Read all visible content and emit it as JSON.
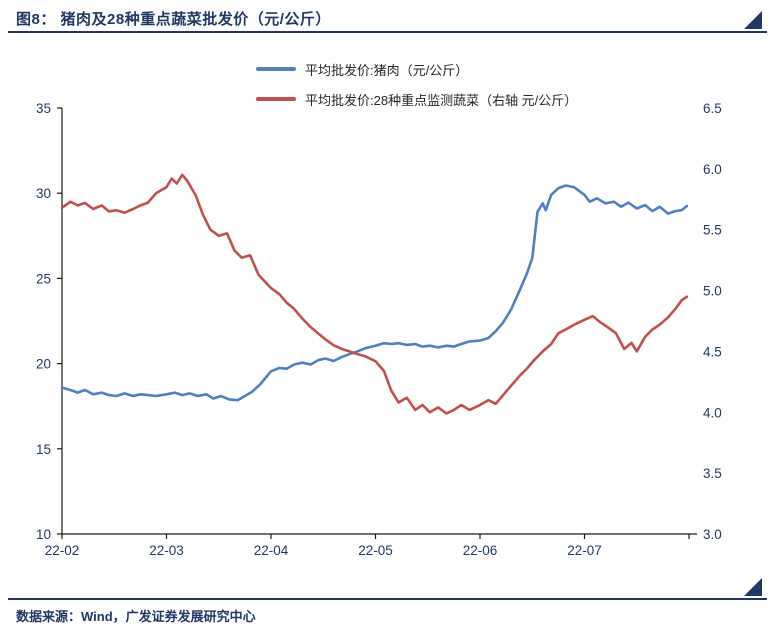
{
  "header": {
    "title": "图8：  猪肉及28种重点蔬菜批发价（元/公斤）"
  },
  "legend": [
    {
      "label": "平均批发价:猪肉（元/公斤）"
    },
    {
      "label": "平均批发价:28种重点监测蔬菜（右轴 元/公斤）"
    }
  ],
  "footer": {
    "source": "数据来源：Wind，广发证券发展研究中心"
  },
  "colors": {
    "navy": "#1f3864",
    "pork_blue": "#4f81bd",
    "veg_red": "#c0504d",
    "axis_text": "#1f3864",
    "axis_line": "#1a1a1a"
  },
  "chart_data": {
    "type": "line",
    "title": "猪肉及28种重点蔬菜批发价（元/公斤）",
    "x_unit": "months since 2022-02-01",
    "x_range": [
      0,
      6.05
    ],
    "x_ticks": [
      "22-02",
      "22-03",
      "22-04",
      "22-05",
      "22-06",
      "22-07"
    ],
    "left_axis": {
      "ticks": [
        10,
        15,
        20,
        25,
        30,
        35
      ],
      "range": [
        10,
        35
      ]
    },
    "right_axis": {
      "ticks": [
        3.0,
        3.5,
        4.0,
        4.5,
        5.0,
        5.5,
        6.0,
        6.5
      ],
      "range": [
        3.0,
        6.5
      ]
    },
    "grid": false,
    "legend_position": "top-center",
    "series": [
      {
        "name": "平均批发价:猪肉（元/公斤）",
        "axis": "left",
        "color": "#4f81bd",
        "x": [
          0.0,
          0.08,
          0.15,
          0.22,
          0.3,
          0.38,
          0.45,
          0.52,
          0.6,
          0.68,
          0.75,
          0.82,
          0.9,
          1.0,
          1.08,
          1.15,
          1.22,
          1.3,
          1.38,
          1.45,
          1.52,
          1.6,
          1.68,
          1.75,
          1.82,
          1.9,
          2.0,
          2.08,
          2.15,
          2.22,
          2.3,
          2.38,
          2.45,
          2.52,
          2.6,
          2.68,
          2.75,
          2.82,
          2.9,
          3.0,
          3.08,
          3.15,
          3.22,
          3.3,
          3.38,
          3.45,
          3.52,
          3.6,
          3.68,
          3.75,
          3.82,
          3.9,
          4.0,
          4.08,
          4.15,
          4.22,
          4.3,
          4.38,
          4.45,
          4.5,
          4.55,
          4.6,
          4.63,
          4.68,
          4.75,
          4.82,
          4.9,
          5.0,
          5.05,
          5.12,
          5.2,
          5.28,
          5.35,
          5.42,
          5.5,
          5.58,
          5.65,
          5.72,
          5.8,
          5.87,
          5.93,
          5.98
        ],
        "values": [
          18.6,
          18.45,
          18.3,
          18.45,
          18.2,
          18.3,
          18.15,
          18.1,
          18.25,
          18.1,
          18.2,
          18.15,
          18.1,
          18.2,
          18.3,
          18.15,
          18.25,
          18.1,
          18.2,
          17.95,
          18.1,
          17.9,
          17.85,
          18.1,
          18.35,
          18.8,
          19.55,
          19.75,
          19.7,
          19.95,
          20.05,
          19.95,
          20.2,
          20.3,
          20.15,
          20.4,
          20.55,
          20.7,
          20.9,
          21.05,
          21.2,
          21.15,
          21.2,
          21.1,
          21.15,
          21.0,
          21.05,
          20.95,
          21.05,
          21.0,
          21.15,
          21.3,
          21.35,
          21.5,
          21.9,
          22.4,
          23.2,
          24.3,
          25.3,
          26.2,
          28.9,
          29.4,
          29.0,
          29.9,
          30.3,
          30.45,
          30.35,
          29.9,
          29.5,
          29.7,
          29.4,
          29.5,
          29.2,
          29.45,
          29.1,
          29.3,
          28.95,
          29.2,
          28.8,
          28.95,
          29.0,
          29.25
        ]
      },
      {
        "name": "平均批发价:28种重点监测蔬菜（右轴 元/公斤）",
        "axis": "right",
        "color": "#c0504d",
        "x": [
          0.0,
          0.08,
          0.15,
          0.22,
          0.3,
          0.38,
          0.45,
          0.52,
          0.6,
          0.68,
          0.75,
          0.82,
          0.9,
          1.0,
          1.05,
          1.1,
          1.15,
          1.2,
          1.28,
          1.35,
          1.42,
          1.5,
          1.58,
          1.65,
          1.72,
          1.8,
          1.88,
          2.0,
          2.08,
          2.15,
          2.22,
          2.3,
          2.38,
          2.45,
          2.52,
          2.6,
          2.68,
          2.75,
          2.82,
          2.9,
          3.0,
          3.08,
          3.15,
          3.22,
          3.3,
          3.38,
          3.45,
          3.52,
          3.6,
          3.68,
          3.75,
          3.82,
          3.9,
          4.0,
          4.08,
          4.15,
          4.22,
          4.3,
          4.38,
          4.45,
          4.52,
          4.6,
          4.68,
          4.75,
          4.82,
          4.9,
          5.0,
          5.08,
          5.15,
          5.22,
          5.3,
          5.38,
          5.45,
          5.5,
          5.58,
          5.65,
          5.72,
          5.8,
          5.87,
          5.93,
          5.98
        ],
        "values": [
          5.68,
          5.73,
          5.7,
          5.72,
          5.67,
          5.7,
          5.65,
          5.66,
          5.64,
          5.67,
          5.7,
          5.72,
          5.8,
          5.85,
          5.92,
          5.88,
          5.95,
          5.9,
          5.78,
          5.62,
          5.5,
          5.45,
          5.47,
          5.33,
          5.27,
          5.29,
          5.13,
          5.02,
          4.97,
          4.9,
          4.85,
          4.77,
          4.7,
          4.65,
          4.6,
          4.55,
          4.52,
          4.5,
          4.48,
          4.46,
          4.42,
          4.34,
          4.18,
          4.08,
          4.12,
          4.02,
          4.06,
          4.0,
          4.04,
          3.99,
          4.02,
          4.06,
          4.02,
          4.06,
          4.1,
          4.07,
          4.14,
          4.22,
          4.3,
          4.36,
          4.43,
          4.5,
          4.56,
          4.65,
          4.68,
          4.72,
          4.76,
          4.79,
          4.74,
          4.7,
          4.65,
          4.52,
          4.57,
          4.5,
          4.62,
          4.68,
          4.72,
          4.78,
          4.85,
          4.92,
          4.95
        ]
      }
    ]
  }
}
